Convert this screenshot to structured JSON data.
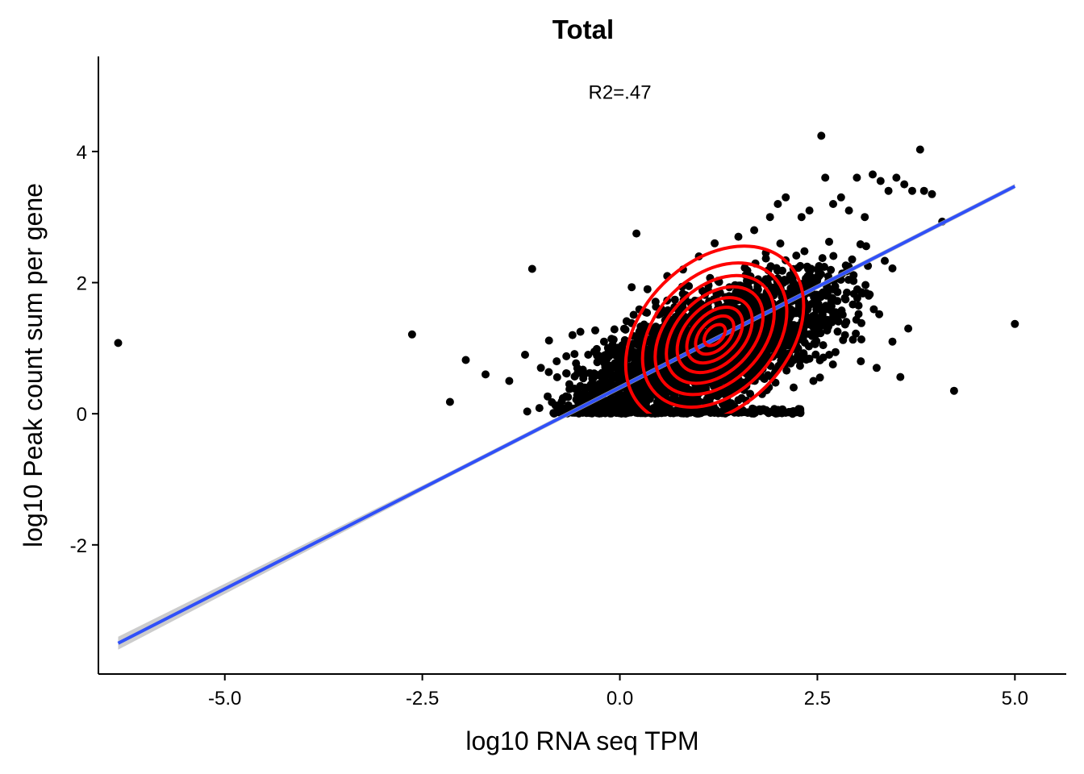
{
  "chart_data": {
    "type": "scatter",
    "title": "Total",
    "xlabel": "log10 RNA seq TPM",
    "ylabel": "log10 Peak count sum per gene",
    "annotation": "R2=.47",
    "xlim": [
      -6.6,
      5.65
    ],
    "ylim": [
      -3.97,
      5.45
    ],
    "x_ticks": [
      -5.0,
      -2.5,
      0.0,
      2.5,
      5.0
    ],
    "x_tick_labels": [
      "-5.0",
      "-2.5",
      "0.0",
      "2.5",
      "5.0"
    ],
    "y_ticks": [
      -2,
      0,
      2,
      4
    ],
    "y_tick_labels": [
      "-2",
      "0",
      "2",
      "4"
    ],
    "grid": false,
    "series": [
      {
        "name": "genes",
        "kind": "points",
        "color": "#000000",
        "x": [
          -6.35,
          -2.63,
          -1.11,
          0.15,
          0.21,
          -0.5,
          0.35,
          0.6,
          0.8,
          1.0,
          1.2,
          1.5,
          1.7,
          1.9,
          2.0,
          2.1,
          2.3,
          2.4,
          2.55,
          2.6,
          2.7,
          2.8,
          2.9,
          3.0,
          3.1,
          3.2,
          3.3,
          3.4,
          3.5,
          3.6,
          3.7,
          3.8,
          3.85,
          3.95,
          4.08,
          4.23,
          5.0,
          -2.15,
          -1.95,
          -1.7,
          -1.4,
          -1.2,
          -1.0,
          -0.8,
          -0.6,
          -0.4,
          -0.2,
          0.0,
          0.3,
          0.5,
          0.7,
          0.9,
          1.1,
          1.3,
          1.6,
          1.8,
          2.2,
          2.45,
          2.65,
          2.85,
          3.05,
          3.25,
          3.45,
          3.55,
          3.65,
          2.5,
          2.95,
          3.15,
          1.0,
          0.45
        ],
        "y": [
          1.08,
          1.21,
          2.21,
          1.93,
          2.75,
          1.25,
          1.9,
          2.1,
          2.2,
          2.4,
          2.6,
          2.7,
          2.8,
          3.0,
          3.2,
          3.3,
          3.0,
          3.1,
          4.24,
          3.6,
          3.2,
          3.3,
          3.1,
          3.6,
          3.0,
          3.65,
          3.55,
          3.4,
          3.6,
          3.5,
          3.4,
          4.03,
          3.4,
          3.35,
          2.93,
          0.35,
          1.37,
          0.18,
          0.82,
          0.6,
          0.5,
          0.9,
          0.7,
          0.8,
          1.2,
          0.9,
          1.1,
          1.0,
          0.5,
          0.6,
          0.2,
          0.3,
          0.1,
          0.15,
          0.2,
          0.3,
          0.4,
          0.5,
          0.9,
          1.2,
          0.8,
          0.7,
          1.1,
          0.56,
          1.3,
          2.2,
          1.13,
          1.8,
          0.05,
          0.05
        ],
        "cloud_note": "dense cloud of thousands of genes spanning x≈-2 to 3.9, y≈0 to 3.5"
      },
      {
        "name": "linear fit",
        "kind": "line",
        "color": "#3050F8",
        "x": [
          -6.35,
          5.0
        ],
        "y": [
          -3.5,
          3.47
        ]
      },
      {
        "name": "density contours",
        "kind": "contour",
        "color": "#FF0000",
        "center": [
          1.2,
          1.2
        ],
        "levels": [
          {
            "rx": 1.3,
            "ry": 0.92,
            "angle_deg": 45
          },
          {
            "rx": 1.05,
            "ry": 0.75,
            "angle_deg": 45
          },
          {
            "rx": 0.88,
            "ry": 0.6,
            "angle_deg": 45
          },
          {
            "rx": 0.72,
            "ry": 0.48,
            "angle_deg": 45
          },
          {
            "rx": 0.56,
            "ry": 0.37,
            "angle_deg": 45
          },
          {
            "rx": 0.42,
            "ry": 0.27,
            "angle_deg": 45
          },
          {
            "rx": 0.29,
            "ry": 0.18,
            "angle_deg": 45
          },
          {
            "rx": 0.16,
            "ry": 0.1,
            "angle_deg": 45
          }
        ]
      }
    ]
  }
}
